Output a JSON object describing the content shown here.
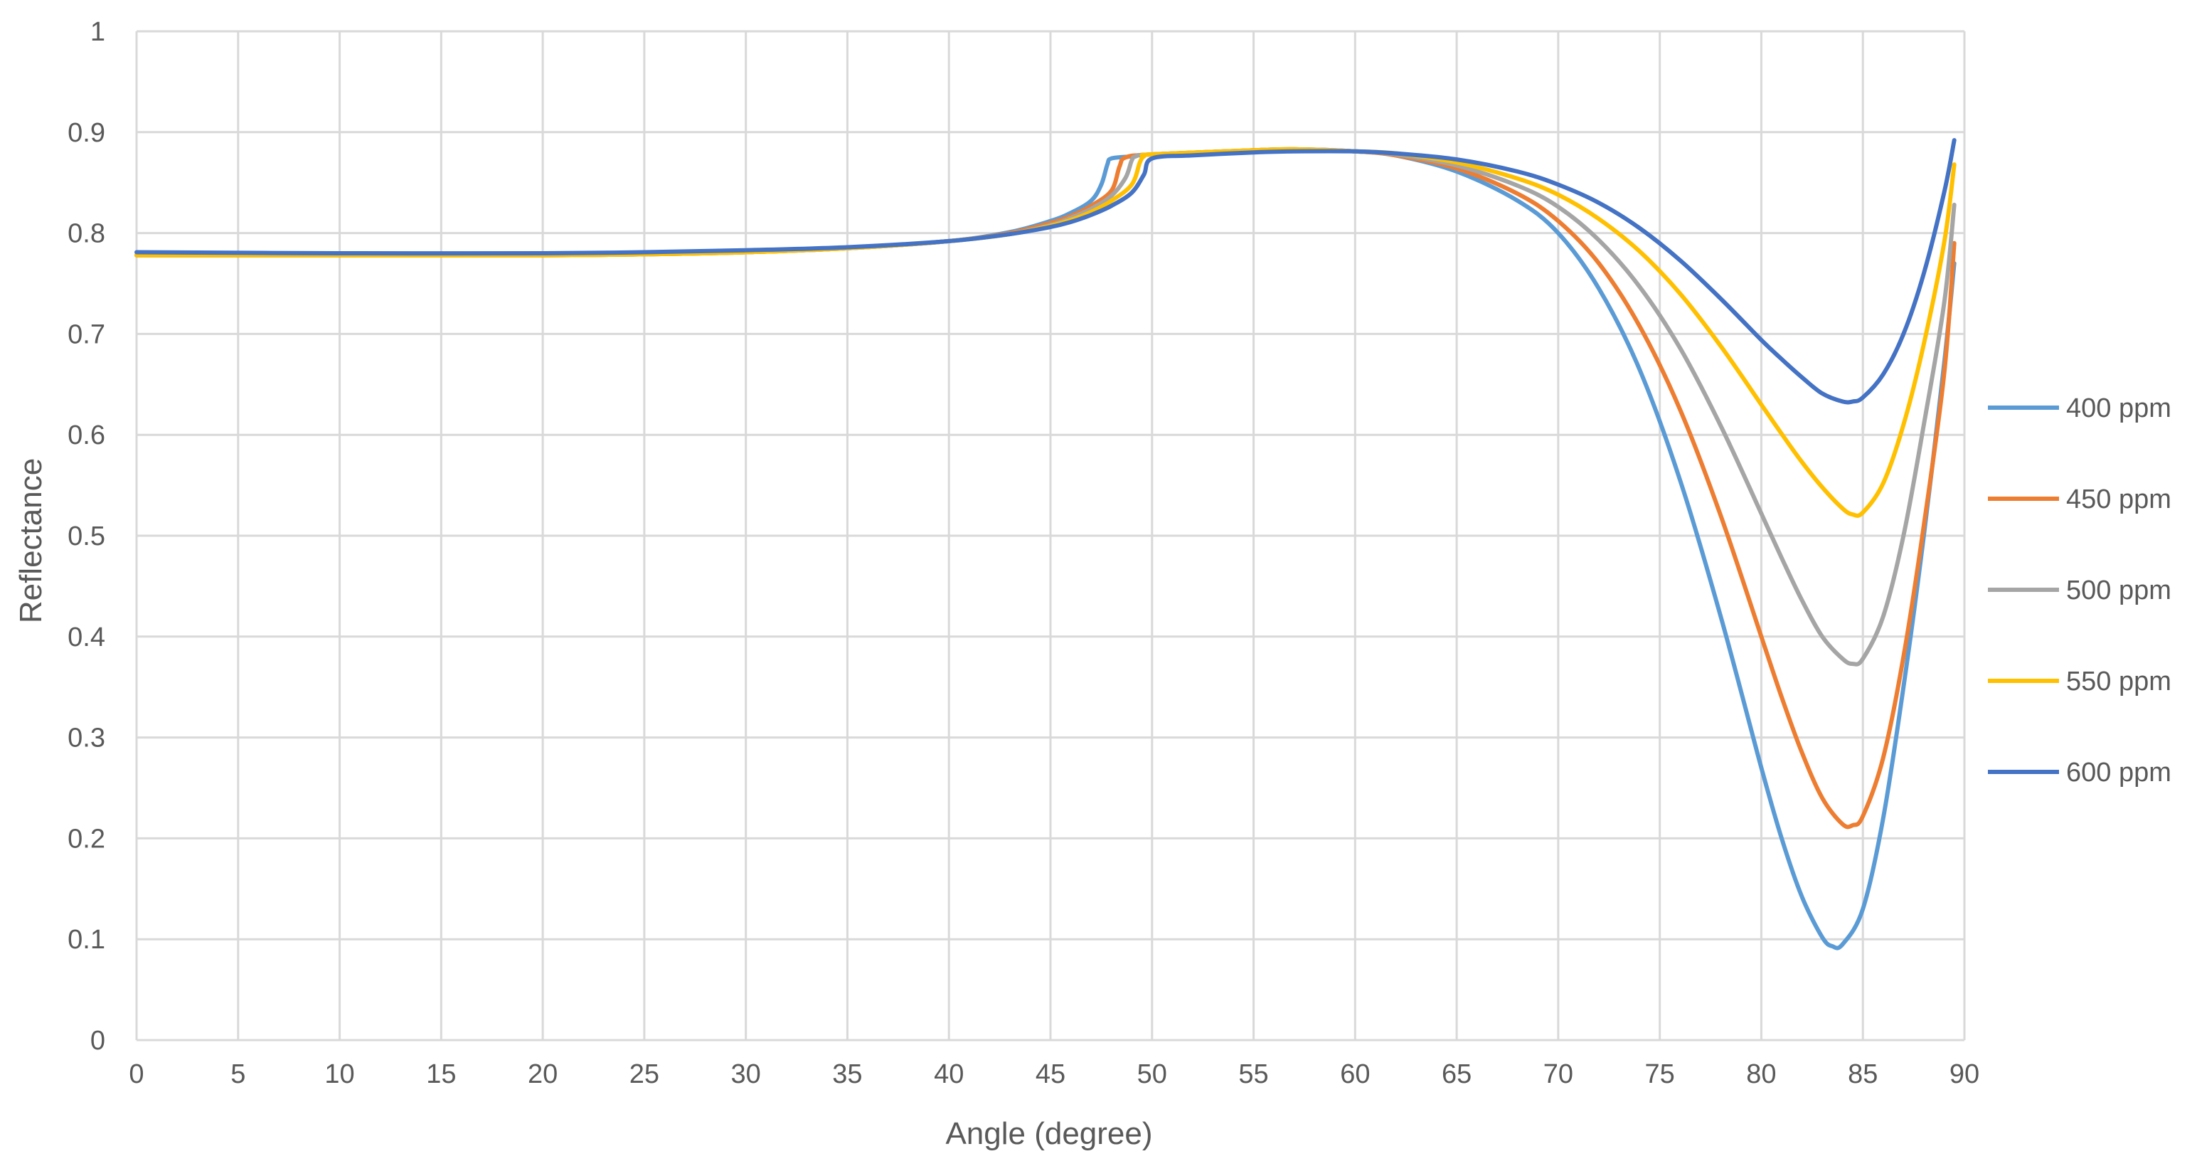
{
  "chart_data": {
    "type": "line",
    "title": "",
    "xlabel": "Angle (degree)",
    "ylabel": "Reflectance",
    "xlim": [
      0,
      90
    ],
    "ylim": [
      0,
      1
    ],
    "xticks": [
      "0",
      "5",
      "10",
      "15",
      "20",
      "25",
      "30",
      "35",
      "40",
      "45",
      "50",
      "55",
      "60",
      "65",
      "70",
      "75",
      "80",
      "85",
      "90"
    ],
    "yticks": [
      "0",
      "0.1",
      "0.2",
      "0.3",
      "0.4",
      "0.5",
      "0.6",
      "0.7",
      "0.8",
      "0.9",
      "1"
    ],
    "grid": true,
    "legend": "right",
    "series": [
      {
        "name": "400 ppm",
        "color": "#5B9BD5",
        "points": [
          [
            0,
            0.778
          ],
          [
            10,
            0.778
          ],
          [
            20,
            0.778
          ],
          [
            25,
            0.779
          ],
          [
            30,
            0.781
          ],
          [
            35,
            0.785
          ],
          [
            40,
            0.792
          ],
          [
            43,
            0.801
          ],
          [
            45,
            0.812
          ],
          [
            46,
            0.82
          ],
          [
            47,
            0.832
          ],
          [
            47.5,
            0.848
          ],
          [
            47.8,
            0.868
          ],
          [
            48,
            0.874
          ],
          [
            49,
            0.876
          ],
          [
            50,
            0.878
          ],
          [
            55,
            0.882
          ],
          [
            57,
            0.883
          ],
          [
            60,
            0.881
          ],
          [
            62,
            0.877
          ],
          [
            65,
            0.861
          ],
          [
            68,
            0.832
          ],
          [
            70,
            0.8
          ],
          [
            72,
            0.745
          ],
          [
            74,
            0.665
          ],
          [
            76,
            0.555
          ],
          [
            78,
            0.42
          ],
          [
            80,
            0.27
          ],
          [
            81,
            0.2
          ],
          [
            82,
            0.142
          ],
          [
            83,
            0.102
          ],
          [
            83.5,
            0.093
          ],
          [
            84,
            0.095
          ],
          [
            85,
            0.13
          ],
          [
            86,
            0.22
          ],
          [
            87,
            0.35
          ],
          [
            88,
            0.5
          ],
          [
            89,
            0.67
          ],
          [
            89.5,
            0.77
          ]
        ]
      },
      {
        "name": "450 ppm",
        "color": "#ED7D31",
        "points": [
          [
            0,
            0.778
          ],
          [
            10,
            0.778
          ],
          [
            20,
            0.778
          ],
          [
            25,
            0.779
          ],
          [
            30,
            0.781
          ],
          [
            35,
            0.785
          ],
          [
            40,
            0.792
          ],
          [
            43,
            0.8
          ],
          [
            45,
            0.81
          ],
          [
            46,
            0.817
          ],
          [
            47,
            0.827
          ],
          [
            48,
            0.842
          ],
          [
            48.4,
            0.866
          ],
          [
            48.7,
            0.875
          ],
          [
            50,
            0.878
          ],
          [
            55,
            0.882
          ],
          [
            57,
            0.883
          ],
          [
            60,
            0.881
          ],
          [
            62,
            0.877
          ],
          [
            65,
            0.864
          ],
          [
            68,
            0.839
          ],
          [
            70,
            0.812
          ],
          [
            72,
            0.77
          ],
          [
            74,
            0.708
          ],
          [
            76,
            0.625
          ],
          [
            78,
            0.52
          ],
          [
            80,
            0.4
          ],
          [
            81,
            0.34
          ],
          [
            82,
            0.285
          ],
          [
            83,
            0.24
          ],
          [
            84,
            0.214
          ],
          [
            84.5,
            0.213
          ],
          [
            85,
            0.222
          ],
          [
            86,
            0.28
          ],
          [
            87,
            0.38
          ],
          [
            88,
            0.51
          ],
          [
            89,
            0.66
          ],
          [
            89.5,
            0.79
          ]
        ]
      },
      {
        "name": "500 ppm",
        "color": "#A5A5A5",
        "points": [
          [
            0,
            0.778
          ],
          [
            10,
            0.778
          ],
          [
            20,
            0.778
          ],
          [
            25,
            0.779
          ],
          [
            30,
            0.781
          ],
          [
            35,
            0.785
          ],
          [
            40,
            0.792
          ],
          [
            43,
            0.799
          ],
          [
            45,
            0.808
          ],
          [
            46,
            0.815
          ],
          [
            47,
            0.824
          ],
          [
            48,
            0.837
          ],
          [
            48.7,
            0.855
          ],
          [
            49,
            0.872
          ],
          [
            49.2,
            0.876
          ],
          [
            50,
            0.878
          ],
          [
            55,
            0.882
          ],
          [
            57,
            0.883
          ],
          [
            60,
            0.881
          ],
          [
            62,
            0.878
          ],
          [
            65,
            0.867
          ],
          [
            68,
            0.847
          ],
          [
            70,
            0.826
          ],
          [
            72,
            0.793
          ],
          [
            74,
            0.747
          ],
          [
            76,
            0.686
          ],
          [
            78,
            0.609
          ],
          [
            80,
            0.522
          ],
          [
            81,
            0.478
          ],
          [
            82,
            0.436
          ],
          [
            83,
            0.4
          ],
          [
            84,
            0.378
          ],
          [
            84.5,
            0.373
          ],
          [
            85,
            0.378
          ],
          [
            86,
            0.42
          ],
          [
            87,
            0.5
          ],
          [
            88,
            0.61
          ],
          [
            89,
            0.73
          ],
          [
            89.5,
            0.828
          ]
        ]
      },
      {
        "name": "550 ppm",
        "color": "#FFC000",
        "points": [
          [
            0,
            0.778
          ],
          [
            10,
            0.778
          ],
          [
            20,
            0.778
          ],
          [
            25,
            0.779
          ],
          [
            30,
            0.781
          ],
          [
            35,
            0.785
          ],
          [
            40,
            0.792
          ],
          [
            43,
            0.799
          ],
          [
            45,
            0.807
          ],
          [
            46,
            0.813
          ],
          [
            47,
            0.821
          ],
          [
            48,
            0.832
          ],
          [
            49,
            0.848
          ],
          [
            49.4,
            0.87
          ],
          [
            49.6,
            0.876
          ],
          [
            50,
            0.878
          ],
          [
            55,
            0.882
          ],
          [
            57,
            0.883
          ],
          [
            60,
            0.881
          ],
          [
            62,
            0.879
          ],
          [
            65,
            0.87
          ],
          [
            68,
            0.854
          ],
          [
            70,
            0.838
          ],
          [
            72,
            0.814
          ],
          [
            74,
            0.782
          ],
          [
            76,
            0.74
          ],
          [
            78,
            0.688
          ],
          [
            80,
            0.63
          ],
          [
            81,
            0.601
          ],
          [
            82,
            0.573
          ],
          [
            83,
            0.548
          ],
          [
            84,
            0.527
          ],
          [
            84.5,
            0.521
          ],
          [
            85,
            0.523
          ],
          [
            86,
            0.552
          ],
          [
            87,
            0.61
          ],
          [
            88,
            0.69
          ],
          [
            89,
            0.79
          ],
          [
            89.5,
            0.868
          ]
        ]
      },
      {
        "name": "600 ppm",
        "color": "#4472C4",
        "points": [
          [
            0,
            0.781
          ],
          [
            10,
            0.78
          ],
          [
            20,
            0.78
          ],
          [
            25,
            0.781
          ],
          [
            30,
            0.783
          ],
          [
            35,
            0.786
          ],
          [
            40,
            0.792
          ],
          [
            43,
            0.799
          ],
          [
            45,
            0.806
          ],
          [
            46,
            0.811
          ],
          [
            47,
            0.818
          ],
          [
            48,
            0.827
          ],
          [
            49,
            0.84
          ],
          [
            49.6,
            0.858
          ],
          [
            50,
            0.874
          ],
          [
            52,
            0.877
          ],
          [
            55,
            0.88
          ],
          [
            57,
            0.881
          ],
          [
            60,
            0.881
          ],
          [
            62,
            0.879
          ],
          [
            65,
            0.873
          ],
          [
            68,
            0.861
          ],
          [
            70,
            0.848
          ],
          [
            72,
            0.83
          ],
          [
            74,
            0.805
          ],
          [
            76,
            0.773
          ],
          [
            78,
            0.735
          ],
          [
            80,
            0.694
          ],
          [
            81,
            0.675
          ],
          [
            82,
            0.657
          ],
          [
            83,
            0.641
          ],
          [
            84,
            0.633
          ],
          [
            84.5,
            0.633
          ],
          [
            85,
            0.637
          ],
          [
            86,
            0.66
          ],
          [
            87,
            0.7
          ],
          [
            88,
            0.76
          ],
          [
            89,
            0.84
          ],
          [
            89.5,
            0.892
          ]
        ]
      }
    ]
  }
}
